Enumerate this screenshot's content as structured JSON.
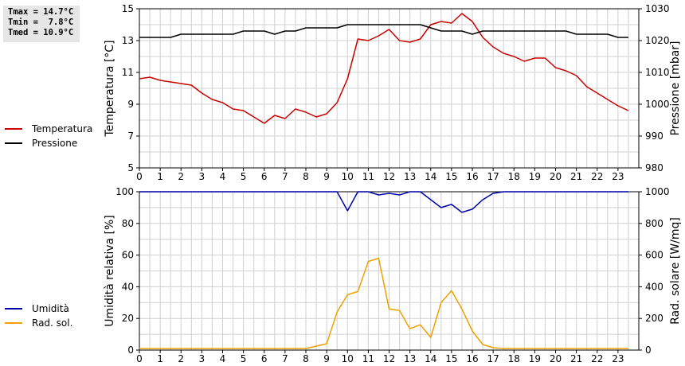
{
  "stats": {
    "tmax": "Tmax = 14.7°C",
    "tmin": "Tmin =  7.8°C",
    "tmed": "Tmed = 10.9°C"
  },
  "legend_top": [
    {
      "label": "Temperatura",
      "color": "#cc0000"
    },
    {
      "label": "Pressione",
      "color": "#000000"
    }
  ],
  "legend_bottom": [
    {
      "label": "Umidità",
      "color": "#0000aa"
    },
    {
      "label": "Rad. sol.",
      "color": "#f0a000"
    }
  ],
  "chart_data": [
    {
      "type": "line",
      "xlim": [
        0,
        24
      ],
      "x_ticks": [
        0,
        1,
        2,
        3,
        4,
        5,
        6,
        7,
        8,
        9,
        10,
        11,
        12,
        13,
        14,
        15,
        16,
        17,
        18,
        19,
        20,
        21,
        22,
        23
      ],
      "grid": true,
      "ylabel_left": "Temperatura [°C]",
      "ylabel_right": "Pressione [mbar]",
      "ylim_left": [
        5,
        15
      ],
      "ylim_right": [
        980,
        1030
      ],
      "yticks_left": [
        5,
        7,
        9,
        11,
        13,
        15
      ],
      "yticks_right": [
        980,
        990,
        1000,
        1010,
        1020,
        1030
      ],
      "series": [
        {
          "name": "Temperatura",
          "axis": "left",
          "color": "#cc0000",
          "x": [
            0,
            0.5,
            1,
            1.5,
            2,
            2.5,
            3,
            3.5,
            4,
            4.5,
            5,
            5.5,
            6,
            6.5,
            7,
            7.5,
            8,
            8.5,
            9,
            9.5,
            10,
            10.5,
            11,
            11.5,
            12,
            12.5,
            13,
            13.5,
            14,
            14.5,
            15,
            15.5,
            16,
            16.5,
            17,
            17.5,
            18,
            18.5,
            19,
            19.5,
            20,
            20.5,
            21,
            21.5,
            22,
            22.5,
            23,
            23.5
          ],
          "values": [
            10.6,
            10.7,
            10.5,
            10.4,
            10.3,
            10.2,
            9.7,
            9.3,
            9.1,
            8.7,
            8.6,
            8.2,
            7.8,
            8.3,
            8.1,
            8.7,
            8.5,
            8.2,
            8.4,
            9.1,
            10.6,
            13.1,
            13.0,
            13.3,
            13.7,
            13.0,
            12.9,
            13.1,
            14.0,
            14.2,
            14.1,
            14.7,
            14.2,
            13.2,
            12.6,
            12.2,
            12.0,
            11.7,
            11.9,
            11.9,
            11.3,
            11.1,
            10.8,
            10.1,
            9.7,
            9.3,
            8.9,
            8.6
          ]
        },
        {
          "name": "Pressione",
          "axis": "right",
          "color": "#000000",
          "x": [
            0,
            1.5,
            2,
            4.5,
            5,
            6,
            6.5,
            7,
            7.5,
            8,
            9.5,
            10,
            13.5,
            14,
            14.5,
            15.5,
            16,
            16.5,
            20.5,
            21,
            22.5,
            23,
            23.5
          ],
          "values": [
            1021,
            1021,
            1022,
            1022,
            1023,
            1023,
            1022,
            1023,
            1023,
            1024,
            1024,
            1025,
            1025,
            1024,
            1023,
            1023,
            1022,
            1023,
            1023,
            1022,
            1022,
            1021,
            1021
          ]
        }
      ]
    },
    {
      "type": "line",
      "xlim": [
        0,
        24
      ],
      "x_ticks": [
        0,
        1,
        2,
        3,
        4,
        5,
        6,
        7,
        8,
        9,
        10,
        11,
        12,
        13,
        14,
        15,
        16,
        17,
        18,
        19,
        20,
        21,
        22,
        23
      ],
      "grid": true,
      "ylabel_left": "Umidità relativa [%]",
      "ylabel_right": "Rad. solare [W/mq]",
      "ylim_left": [
        0,
        100
      ],
      "ylim_right": [
        0,
        1000
      ],
      "yticks_left": [
        0,
        20,
        40,
        60,
        80,
        100
      ],
      "yticks_right": [
        0,
        200,
        400,
        600,
        800,
        1000
      ],
      "series": [
        {
          "name": "Umidità",
          "axis": "left",
          "color": "#0000aa",
          "x": [
            0,
            9.5,
            10,
            10.5,
            11,
            11.5,
            12,
            12.5,
            13,
            13.5,
            14,
            14.5,
            15,
            15.5,
            16,
            16.5,
            17,
            17.5,
            23.5
          ],
          "values": [
            100,
            100,
            88,
            100,
            100,
            98,
            99,
            98,
            100,
            100,
            95,
            90,
            92,
            87,
            89,
            95,
            99,
            100,
            100
          ]
        },
        {
          "name": "Rad. sol.",
          "axis": "right",
          "color": "#f0a000",
          "x": [
            0,
            8,
            8.5,
            9,
            9.5,
            10,
            10.5,
            11,
            11.5,
            12,
            12.5,
            13,
            13.5,
            14,
            14.5,
            15,
            15.5,
            16,
            16.5,
            17,
            17.5,
            23.5
          ],
          "values": [
            10,
            10,
            25,
            40,
            240,
            350,
            370,
            560,
            580,
            260,
            250,
            135,
            160,
            80,
            300,
            375,
            260,
            120,
            35,
            15,
            10,
            10
          ]
        }
      ]
    }
  ]
}
